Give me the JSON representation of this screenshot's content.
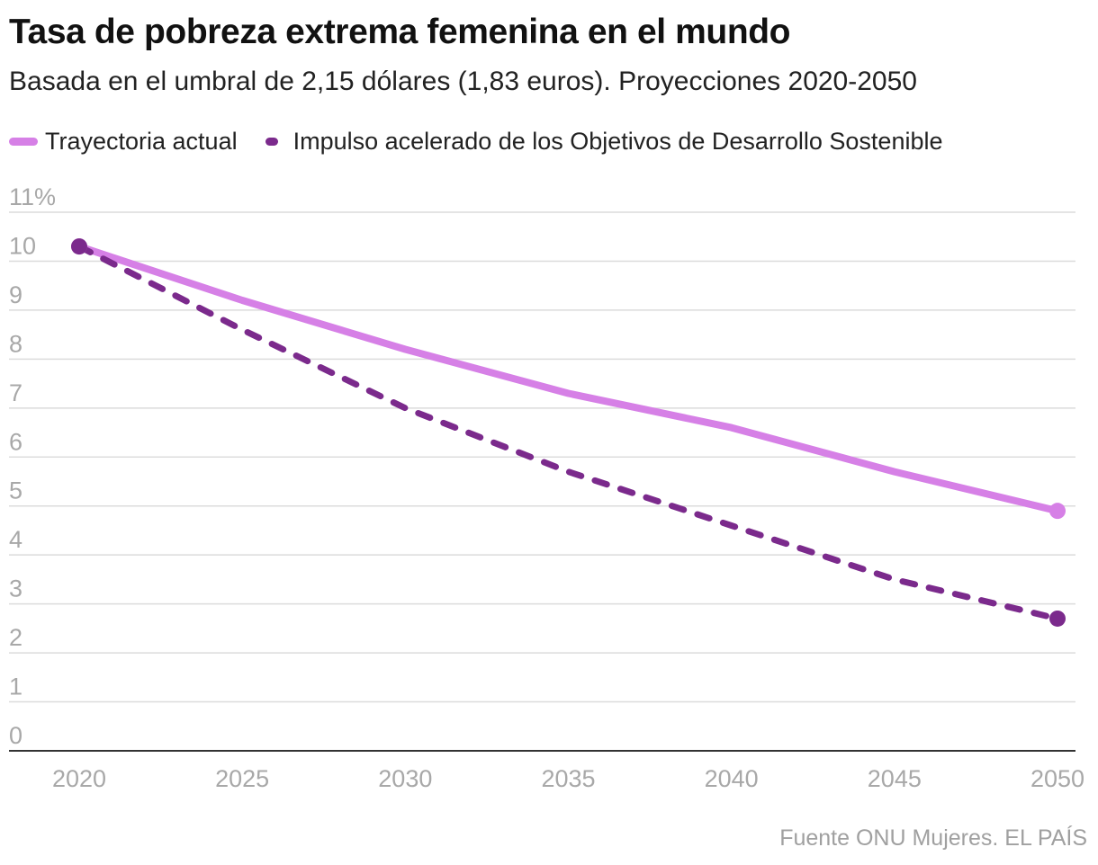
{
  "title": "Tasa de pobreza extrema femenina en el mundo",
  "subtitle": "Basada en el umbral de 2,15 dólares (1,83 euros). Proyecciones 2020-2050",
  "source": "Fuente ONU Mujeres. EL PAÍS",
  "legend": [
    {
      "label": "Trayectoria actual",
      "color": "#d680e6",
      "style": "solid"
    },
    {
      "label": "Impulso acelerado de los Objetivos de Desarrollo Sostenible",
      "color": "#7b2a8c",
      "style": "dashed"
    }
  ],
  "chart_data": {
    "type": "line",
    "title": "Tasa de pobreza extrema femenina en el mundo",
    "xlabel": "",
    "ylabel": "",
    "x": [
      2020,
      2025,
      2030,
      2035,
      2040,
      2045,
      2050
    ],
    "xticks": [
      "2020",
      "2025",
      "2030",
      "2035",
      "2040",
      "2045",
      "2050"
    ],
    "yticks": [
      "0",
      "1",
      "2",
      "3",
      "4",
      "5",
      "6",
      "7",
      "8",
      "9",
      "10",
      "11%"
    ],
    "ylim": [
      0,
      11
    ],
    "xlim": [
      2020,
      2050
    ],
    "grid": true,
    "series": [
      {
        "name": "Trayectoria actual",
        "color": "#d680e6",
        "style": "solid",
        "values": [
          10.3,
          9.2,
          8.2,
          7.3,
          6.6,
          5.7,
          4.9
        ]
      },
      {
        "name": "Impulso acelerado de los Objetivos de Desarrollo Sostenible",
        "color": "#7b2a8c",
        "style": "dashed",
        "values": [
          10.3,
          8.6,
          7.0,
          5.7,
          4.6,
          3.5,
          2.7
        ]
      }
    ]
  }
}
